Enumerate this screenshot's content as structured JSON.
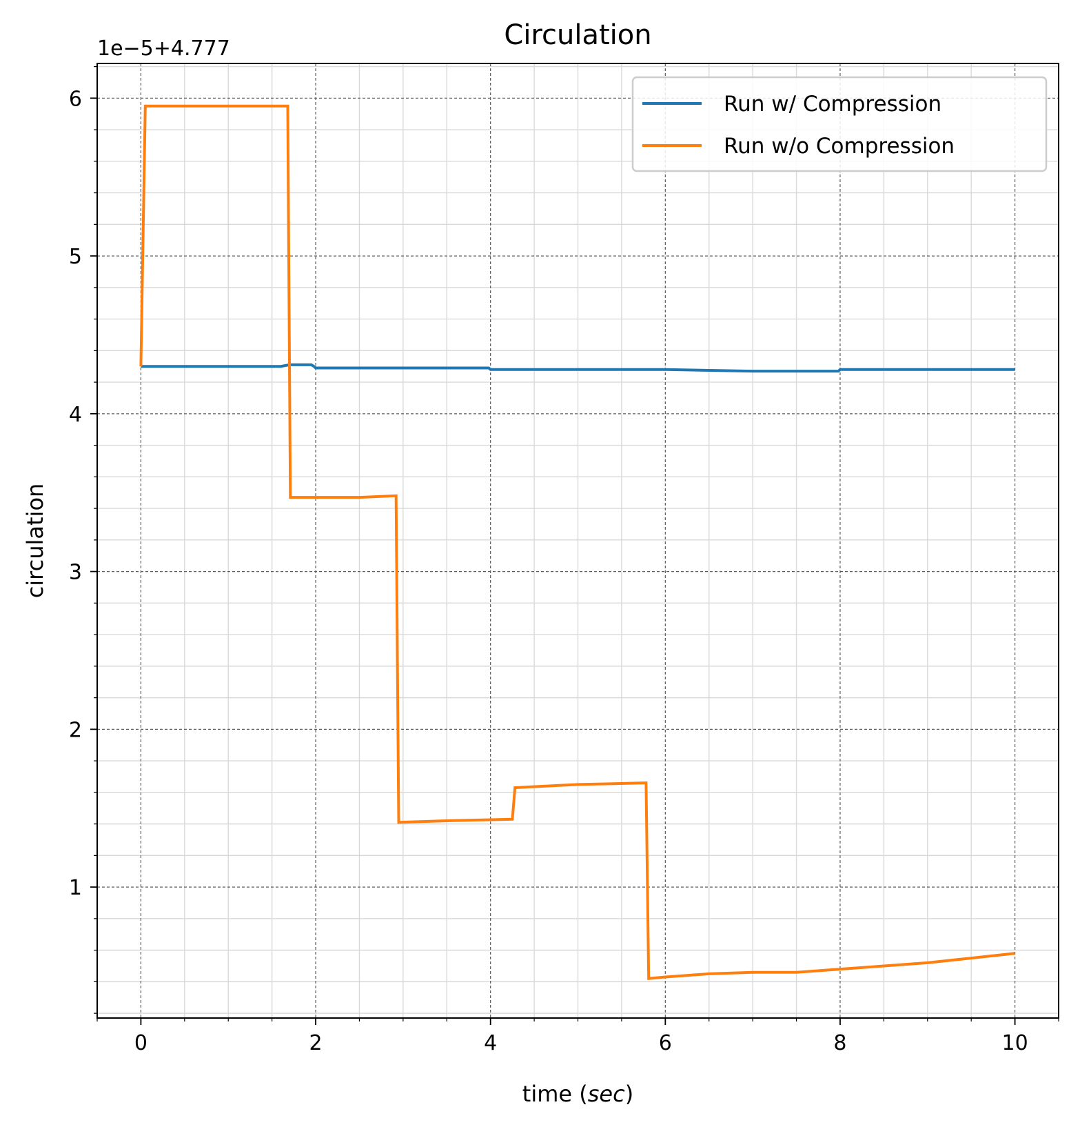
{
  "chart_data": {
    "type": "line",
    "title": "Circulation",
    "xlabel_prefix": "time (",
    "xlabel_unit": "sec",
    "xlabel_suffix": ")",
    "ylabel": "circulation",
    "y_offset_text": "1e−5+4.777",
    "xlim": [
      -0.5,
      10.5
    ],
    "ylim": [
      0.17,
      6.22
    ],
    "x_ticks": [
      0,
      2,
      4,
      6,
      8,
      10
    ],
    "x_tick_labels": [
      "0",
      "2",
      "4",
      "6",
      "8",
      "10"
    ],
    "y_ticks": [
      1,
      2,
      3,
      4,
      5,
      6
    ],
    "y_tick_labels": [
      "1",
      "2",
      "3",
      "4",
      "5",
      "6"
    ],
    "x_minor_step": 0.5,
    "y_minor_step": 0.2,
    "grid": true,
    "legend_position": "top-right",
    "series": [
      {
        "name": "Run w/ Compression",
        "color": "#1f77b4",
        "x": [
          0.0,
          0.5,
          1.0,
          1.6,
          1.7,
          1.9,
          1.95,
          1.98,
          2.0,
          3.0,
          3.98,
          4.0,
          5.0,
          6.0,
          7.0,
          7.98,
          8.0,
          9.0,
          10.0
        ],
        "y": [
          4.3,
          4.3,
          4.3,
          4.3,
          4.31,
          4.31,
          4.31,
          4.3,
          4.29,
          4.29,
          4.29,
          4.28,
          4.28,
          4.28,
          4.27,
          4.27,
          4.28,
          4.28,
          4.28
        ]
      },
      {
        "name": "Run w/o Compression",
        "color": "#ff7f0e",
        "x": [
          0.0,
          0.05,
          1.0,
          1.68,
          1.71,
          2.5,
          2.92,
          2.95,
          3.5,
          4.25,
          4.28,
          5.0,
          5.78,
          5.81,
          6.0,
          6.5,
          7.0,
          7.5,
          8.0,
          8.5,
          9.0,
          9.5,
          10.0
        ],
        "y": [
          4.3,
          5.95,
          5.95,
          5.95,
          3.47,
          3.47,
          3.48,
          1.41,
          1.42,
          1.43,
          1.63,
          1.65,
          1.66,
          0.42,
          0.43,
          0.45,
          0.46,
          0.46,
          0.48,
          0.5,
          0.52,
          0.55,
          0.58
        ]
      }
    ]
  }
}
